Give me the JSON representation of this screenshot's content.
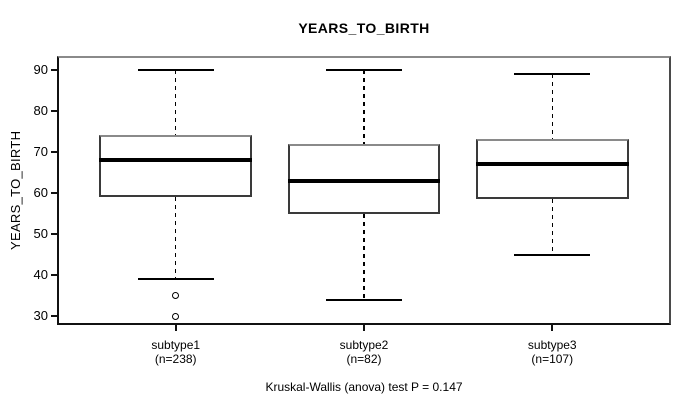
{
  "chart_data": {
    "type": "box",
    "title": "YEARS_TO_BIRTH",
    "ylabel": "YEARS_TO_BIRTH",
    "xlabel": "",
    "caption": "Kruskal-Wallis (anova) test P = 0.147",
    "yticks": [
      30,
      40,
      50,
      60,
      70,
      80,
      90
    ],
    "ylim": [
      28.4,
      92.8
    ],
    "xlim": [
      0.38,
      3.62
    ],
    "grid": false,
    "legend": "none",
    "groups": [
      {
        "label": "subtype1",
        "n": 238,
        "n_label": "(n=238)",
        "whisker_low": 39,
        "q1": 59,
        "median": 68,
        "q3": 74,
        "whisker_high": 90,
        "outliers": [
          35,
          30
        ]
      },
      {
        "label": "subtype2",
        "n": 82,
        "n_label": "(n=82)",
        "whisker_low": 34,
        "q1": 55,
        "median": 63,
        "q3": 72,
        "whisker_high": 90,
        "outliers": []
      },
      {
        "label": "subtype3",
        "n": 107,
        "n_label": "(n=107)",
        "whisker_low": 45,
        "q1": 58.5,
        "median": 67,
        "q3": 73,
        "whisker_high": 89,
        "outliers": []
      }
    ],
    "colors": {
      "line": "#000000",
      "box_fill": "#ffffff",
      "background": "#ffffff",
      "frame_top": "#8a8a8a"
    }
  }
}
